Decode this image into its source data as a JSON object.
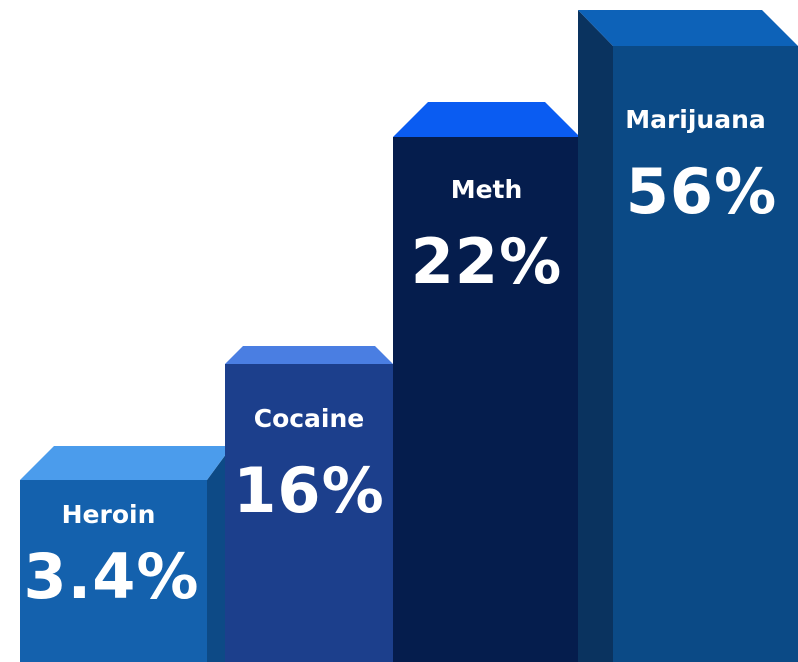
{
  "chart_data": {
    "type": "bar",
    "title": "",
    "xlabel": "",
    "ylabel": "",
    "categories": [
      "Heroin",
      "Cocaine",
      "Meth",
      "Marijuana"
    ],
    "values": [
      3.4,
      16,
      22,
      56
    ],
    "value_labels": [
      "3.4%",
      "16%",
      "22%",
      "56%"
    ],
    "grid": false,
    "legend": "none",
    "style": "3d-bar",
    "colors": [
      {
        "top": "#4b9cec",
        "front": "#1461ad",
        "side": "#0d4a86"
      },
      {
        "top": "#4a7ee2",
        "front": "#1c3f8c",
        "side": "#142f6b"
      },
      {
        "top": "#0a5cf2",
        "front": "#051d4d",
        "side": "#03163a"
      },
      {
        "top": "#0d62b8",
        "front": "#0b4a86",
        "side": "#0a335f"
      }
    ]
  }
}
